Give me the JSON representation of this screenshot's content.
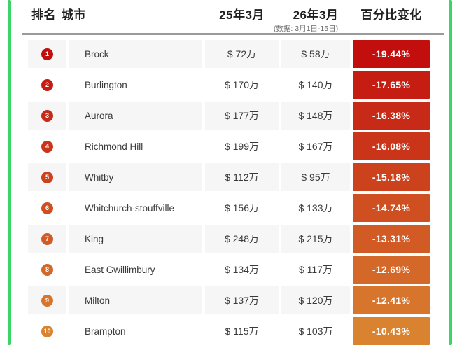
{
  "colors": {
    "border_green": "#3bd466",
    "rule_gray": "#9a9a9a",
    "alt_row_bg": "#f6f6f6",
    "header_text": "#1f1f1f",
    "note_text": "#6b6b6b",
    "body_text": "#3a3a3a"
  },
  "chart_data": {
    "type": "table",
    "header": {
      "rank": "排名",
      "city": "城市",
      "mar25": "25年3月",
      "mar26": "26年3月",
      "mar26_note": "(数据: 3月1日-15日)",
      "change": "百分比变化"
    },
    "rows": [
      {
        "rank": "1",
        "city": "Brock",
        "mar25": "$ 72万",
        "mar26": "$ 58万",
        "change": "-19.44%",
        "color": "#c20f0e"
      },
      {
        "rank": "2",
        "city": "Burlington",
        "mar25": "$ 170万",
        "mar26": "$ 140万",
        "change": "-17.65%",
        "color": "#c51d12"
      },
      {
        "rank": "3",
        "city": "Aurora",
        "mar25": "$ 177万",
        "mar26": "$ 148万",
        "change": "-16.38%",
        "color": "#c72a16"
      },
      {
        "rank": "4",
        "city": "Richmond Hill",
        "mar25": "$ 199万",
        "mar26": "$ 167万",
        "change": "-16.08%",
        "color": "#ca351a"
      },
      {
        "rank": "5",
        "city": "Whitby",
        "mar25": "$ 112万",
        "mar26": "$ 95万",
        "change": "-15.18%",
        "color": "#cc421d"
      },
      {
        "rank": "6",
        "city": "Whitchurch-stouffville",
        "mar25": "$ 156万",
        "mar26": "$ 133万",
        "change": "-14.74%",
        "color": "#cf4f21"
      },
      {
        "rank": "7",
        "city": "King",
        "mar25": "$ 248万",
        "mar26": "$ 215万",
        "change": "-13.31%",
        "color": "#d25b25"
      },
      {
        "rank": "8",
        "city": "East Gwillimbury",
        "mar25": "$ 134万",
        "mar26": "$ 117万",
        "change": "-12.69%",
        "color": "#d46828"
      },
      {
        "rank": "9",
        "city": "Milton",
        "mar25": "$ 137万",
        "mar26": "$ 120万",
        "change": "-12.41%",
        "color": "#d7752c"
      },
      {
        "rank": "10",
        "city": "Brampton",
        "mar25": "$ 115万",
        "mar26": "$ 103万",
        "change": "-10.43%",
        "color": "#d9822f"
      }
    ]
  }
}
